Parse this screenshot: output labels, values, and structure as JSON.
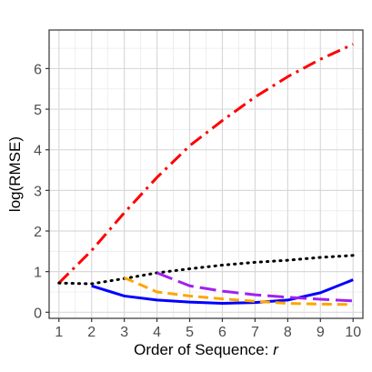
{
  "chart_data": {
    "type": "line",
    "title": "",
    "xlabel": "Order of Sequence: ",
    "xlabel_var": "r",
    "ylabel": "log(RMSE)",
    "xlim": [
      0.7,
      10.3
    ],
    "ylim": [
      -0.15,
      6.95
    ],
    "x_ticks": [
      1,
      2,
      3,
      4,
      5,
      6,
      7,
      8,
      9,
      10
    ],
    "y_ticks": [
      0,
      1,
      2,
      3,
      4,
      5,
      6
    ],
    "grid": true,
    "legend": "none",
    "series": [
      {
        "color": "#ff0000",
        "linestyle": "dashdot",
        "points": [
          [
            1,
            0.72
          ],
          [
            2,
            1.52
          ],
          [
            3,
            2.45
          ],
          [
            4,
            3.32
          ],
          [
            5,
            4.1
          ],
          [
            6,
            4.72
          ],
          [
            7,
            5.3
          ],
          [
            8,
            5.8
          ],
          [
            9,
            6.23
          ],
          [
            10,
            6.6
          ]
        ]
      },
      {
        "color": "#000000",
        "linestyle": "dotted",
        "points": [
          [
            1,
            0.72
          ],
          [
            2,
            0.7
          ],
          [
            3,
            0.83
          ],
          [
            4,
            0.97
          ],
          [
            5,
            1.07
          ],
          [
            6,
            1.16
          ],
          [
            7,
            1.23
          ],
          [
            8,
            1.28
          ],
          [
            9,
            1.35
          ],
          [
            10,
            1.4
          ]
        ]
      },
      {
        "color": "#0000ff",
        "linestyle": "solid",
        "points": [
          [
            2,
            0.65
          ],
          [
            3,
            0.4
          ],
          [
            4,
            0.3
          ],
          [
            5,
            0.25
          ],
          [
            6,
            0.22
          ],
          [
            7,
            0.24
          ],
          [
            8,
            0.3
          ],
          [
            9,
            0.48
          ],
          [
            10,
            0.8
          ]
        ]
      },
      {
        "color": "#ffa500",
        "linestyle": "dashed",
        "points": [
          [
            3,
            0.85
          ],
          [
            4,
            0.5
          ],
          [
            5,
            0.4
          ],
          [
            6,
            0.33
          ],
          [
            7,
            0.27
          ],
          [
            8,
            0.22
          ],
          [
            9,
            0.2
          ],
          [
            10,
            0.19
          ]
        ]
      },
      {
        "color": "#a020f0",
        "linestyle": "longdash",
        "points": [
          [
            4,
            0.97
          ],
          [
            5,
            0.65
          ],
          [
            6,
            0.52
          ],
          [
            7,
            0.43
          ],
          [
            8,
            0.37
          ],
          [
            9,
            0.32
          ],
          [
            10,
            0.28
          ]
        ]
      }
    ]
  }
}
